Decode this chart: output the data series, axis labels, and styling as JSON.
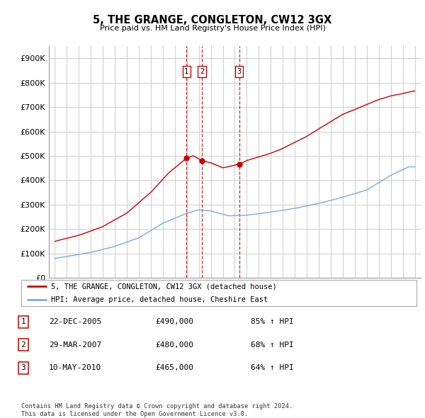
{
  "title": "5, THE GRANGE, CONGLETON, CW12 3GX",
  "subtitle": "Price paid vs. HM Land Registry's House Price Index (HPI)",
  "ylabel_ticks": [
    "£0",
    "£100K",
    "£200K",
    "£300K",
    "£400K",
    "£500K",
    "£600K",
    "£700K",
    "£800K",
    "£900K"
  ],
  "ytick_vals": [
    0,
    100000,
    200000,
    300000,
    400000,
    500000,
    600000,
    700000,
    800000,
    900000
  ],
  "xlim": [
    1994.5,
    2025.5
  ],
  "ylim": [
    0,
    950000
  ],
  "sale_dates": [
    2005.97,
    2007.25,
    2010.37
  ],
  "sale_prices": [
    490000,
    480000,
    465000
  ],
  "sale_labels": [
    "1",
    "2",
    "3"
  ],
  "legend_red": "5, THE GRANGE, CONGLETON, CW12 3GX (detached house)",
  "legend_blue": "HPI: Average price, detached house, Cheshire East",
  "table_rows": [
    [
      "1",
      "22-DEC-2005",
      "£490,000",
      "85% ↑ HPI"
    ],
    [
      "2",
      "29-MAR-2007",
      "£480,000",
      "68% ↑ HPI"
    ],
    [
      "3",
      "10-MAY-2010",
      "£465,000",
      "64% ↑ HPI"
    ]
  ],
  "footer": "Contains HM Land Registry data © Crown copyright and database right 2024.\nThis data is licensed under the Open Government Licence v3.0.",
  "red_color": "#cc0000",
  "blue_color": "#7aaadd",
  "dashed_color": "#cc0000",
  "grid_color": "#cccccc",
  "bg_color": "#ffffff"
}
